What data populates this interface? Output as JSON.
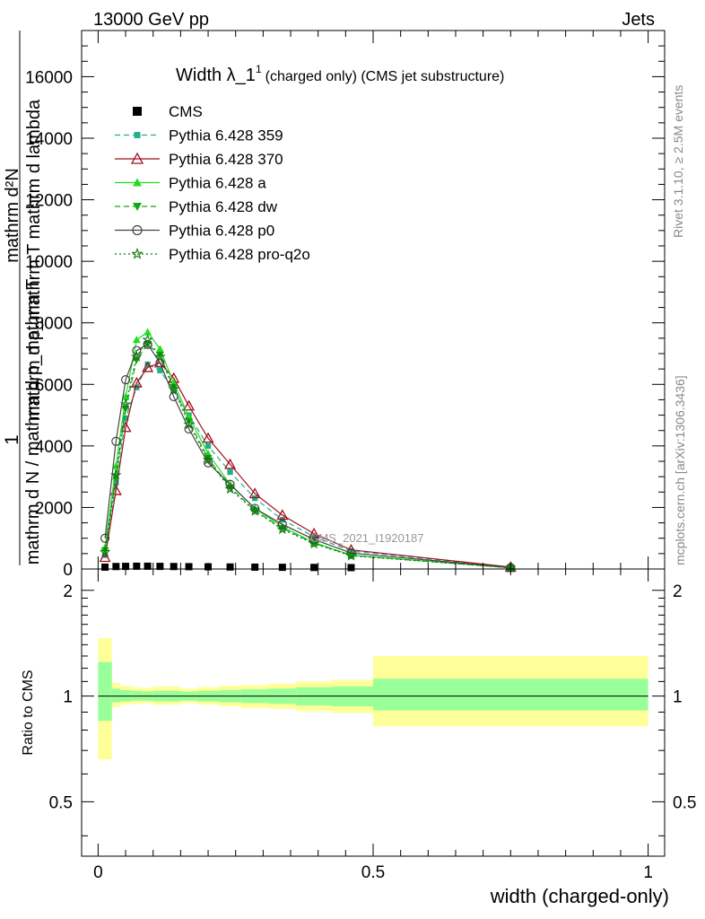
{
  "header": {
    "left": "13000 GeV pp",
    "right": "Jets"
  },
  "title": {
    "main": "Width λ_1",
    "superscript": "1",
    "sub": "(charged only) (CMS jet substructure)"
  },
  "side_labels": {
    "rivet": "Rivet 3.1.10, ≥ 2.5M events",
    "mcplots": "mcplots.cern.ch [arXiv:1306.3436]"
  },
  "watermark": "CMS_2021_I1920187",
  "chart_data": [
    {
      "type": "line",
      "panel": "main",
      "ylabel_numerator": "1",
      "ylabel_numerator_lines": [
        "mathrm d²N",
        "mathrm d p_mathrm T mathrm d lambda"
      ],
      "ylabel_denominator": "mathrm d N / mathrm d p_mathrm T",
      "xlim": [
        -0.03,
        1.03
      ],
      "ylim": [
        0,
        17500
      ],
      "yticks": [
        0,
        2000,
        4000,
        6000,
        8000,
        10000,
        12000,
        14000,
        16000
      ],
      "ytick_labels": [
        "0",
        "2000",
        "4000",
        "6000",
        "8000",
        "10000",
        "12000",
        "14000",
        "16000"
      ],
      "legend_position": "top-left",
      "x": [
        0.0125,
        0.0325,
        0.05,
        0.07,
        0.09,
        0.1125,
        0.1375,
        0.165,
        0.2,
        0.24,
        0.285,
        0.335,
        0.3925,
        0.46,
        0.75
      ],
      "series": [
        {
          "name": "CMS",
          "color": "#000000",
          "marker": "square",
          "dash": "none",
          "values": [
            60,
            80,
            85,
            90,
            90,
            85,
            80,
            75,
            70,
            65,
            60,
            55,
            50,
            45,
            20
          ]
        },
        {
          "name": "Pythia 6.428 359",
          "color": "#20b08a",
          "marker": "small-square",
          "dash": "dashed",
          "values": [
            450,
            2800,
            4900,
            5900,
            6650,
            6450,
            5800,
            5000,
            4000,
            3150,
            2300,
            1600,
            1050,
            580,
            55
          ]
        },
        {
          "name": "Pythia 6.428 370",
          "color": "#a01020",
          "marker": "open-triangle",
          "dash": "solid",
          "values": [
            380,
            2550,
            4600,
            6050,
            6550,
            6700,
            6200,
            5300,
            4250,
            3400,
            2450,
            1750,
            1150,
            620,
            60
          ]
        },
        {
          "name": "Pythia 6.428 a",
          "color": "#22dd22",
          "marker": "filled-triangle",
          "dash": "solid",
          "values": [
            700,
            3350,
            5600,
            7450,
            7700,
            7150,
            6050,
            4950,
            3750,
            2750,
            1970,
            1370,
            860,
            450,
            40
          ]
        },
        {
          "name": "Pythia 6.428 dw",
          "color": "#11aa11",
          "marker": "filled-inverted-triangle",
          "dash": "dashed",
          "values": [
            600,
            3000,
            5200,
            6800,
            7300,
            6950,
            5900,
            4800,
            3600,
            2650,
            1900,
            1320,
            840,
            440,
            38
          ]
        },
        {
          "name": "Pythia 6.428 p0",
          "color": "#444444",
          "marker": "open-circle",
          "dash": "solid",
          "values": [
            1000,
            4150,
            6150,
            7100,
            7300,
            6700,
            5600,
            4550,
            3450,
            2750,
            1970,
            1450,
            960,
            520,
            45
          ]
        },
        {
          "name": "Pythia 6.428 pro-q2o",
          "color": "#117711",
          "marker": "star",
          "dash": "dotted",
          "values": [
            550,
            3050,
            5350,
            6900,
            7450,
            6900,
            5850,
            4700,
            3550,
            2600,
            1880,
            1290,
            820,
            430,
            37
          ]
        }
      ]
    },
    {
      "type": "area",
      "panel": "ratio",
      "ylabel": "Ratio to CMS",
      "xlabel": "width (charged-only)",
      "xlim": [
        -0.03,
        1.03
      ],
      "ylim": [
        0.35,
        2.3
      ],
      "yticks": [
        0.5,
        1,
        2
      ],
      "ytick_labels": [
        "0.5",
        "1",
        "2"
      ],
      "xticks": [
        0,
        0.5,
        1
      ],
      "xtick_labels": [
        "0",
        "0.5",
        "1"
      ],
      "reference": 1,
      "bins": [
        {
          "lo": 0.0,
          "hi": 0.025,
          "stat": [
            0.85,
            1.25
          ],
          "total": [
            0.66,
            1.46
          ]
        },
        {
          "lo": 0.025,
          "hi": 0.04,
          "stat": [
            0.96,
            1.05
          ],
          "total": [
            0.93,
            1.09
          ]
        },
        {
          "lo": 0.04,
          "hi": 0.06,
          "stat": [
            0.965,
            1.04
          ],
          "total": [
            0.945,
            1.07
          ]
        },
        {
          "lo": 0.06,
          "hi": 0.08,
          "stat": [
            0.97,
            1.035
          ],
          "total": [
            0.95,
            1.06
          ]
        },
        {
          "lo": 0.08,
          "hi": 0.1,
          "stat": [
            0.97,
            1.03
          ],
          "total": [
            0.955,
            1.055
          ]
        },
        {
          "lo": 0.1,
          "hi": 0.125,
          "stat": [
            0.965,
            1.035
          ],
          "total": [
            0.945,
            1.065
          ]
        },
        {
          "lo": 0.125,
          "hi": 0.15,
          "stat": [
            0.965,
            1.035
          ],
          "total": [
            0.945,
            1.065
          ]
        },
        {
          "lo": 0.15,
          "hi": 0.18,
          "stat": [
            0.97,
            1.03
          ],
          "total": [
            0.955,
            1.05
          ]
        },
        {
          "lo": 0.18,
          "hi": 0.22,
          "stat": [
            0.965,
            1.035
          ],
          "total": [
            0.945,
            1.06
          ]
        },
        {
          "lo": 0.22,
          "hi": 0.26,
          "stat": [
            0.96,
            1.04
          ],
          "total": [
            0.935,
            1.07
          ]
        },
        {
          "lo": 0.26,
          "hi": 0.31,
          "stat": [
            0.955,
            1.045
          ],
          "total": [
            0.925,
            1.075
          ]
        },
        {
          "lo": 0.31,
          "hi": 0.36,
          "stat": [
            0.95,
            1.05
          ],
          "total": [
            0.92,
            1.085
          ]
        },
        {
          "lo": 0.36,
          "hi": 0.425,
          "stat": [
            0.94,
            1.06
          ],
          "total": [
            0.905,
            1.1
          ]
        },
        {
          "lo": 0.425,
          "hi": 0.5,
          "stat": [
            0.935,
            1.065
          ],
          "total": [
            0.895,
            1.11
          ]
        },
        {
          "lo": 0.5,
          "hi": 1.0,
          "stat": [
            0.91,
            1.12
          ],
          "total": [
            0.82,
            1.3
          ]
        }
      ],
      "colors": {
        "stat": "#99ff99",
        "total": "#ffff99"
      }
    }
  ]
}
